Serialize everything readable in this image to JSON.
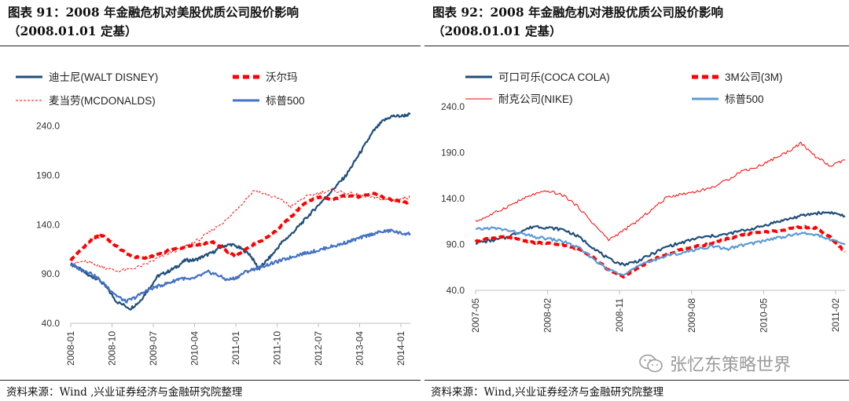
{
  "charts": [
    {
      "title": "图表 91：2008 年金融危机对美股优质公司股价影响",
      "subtitle": "（2008.01.01 定基）",
      "source": "资料来源：Wind ,兴业证券经济与金融研究院整理"
    },
    {
      "title": "图表 92：2008 年金融危机对港股优质公司股价影响",
      "subtitle": "（2008.01.01 定基）",
      "source": "资料来源：Wind,兴业证券经济与金融研究院整理"
    }
  ],
  "watermark": "张忆东策略世界",
  "colors": {
    "navy": "#1f4e79",
    "red": "#ff0000",
    "blue": "#4472c4",
    "lightblue": "#5b9bd5"
  },
  "chart_data": [
    {
      "type": "line",
      "title": "",
      "x_ticks": [
        "2008-01",
        "2008-10",
        "2009-07",
        "2010-04",
        "2011-01",
        "2011-10",
        "2012-07",
        "2013-04",
        "2014-01"
      ],
      "y_ticks": [
        "40.0",
        "90.0",
        "140.0",
        "190.0",
        "240.0"
      ],
      "ylim": [
        40,
        250
      ],
      "grid": false,
      "legend": "top",
      "series": [
        {
          "name": "迪士尼(WALT DISNEY)",
          "color": "#1f4e79",
          "style": "solid",
          "values": [
            [
              0,
              100
            ],
            [
              2,
              95
            ],
            [
              4,
              88
            ],
            [
              6,
              85
            ],
            [
              8,
              75
            ],
            [
              10,
              62
            ],
            [
              13,
              55
            ],
            [
              15,
              62
            ],
            [
              17,
              75
            ],
            [
              19,
              88
            ],
            [
              21,
              92
            ],
            [
              23,
              97
            ],
            [
              25,
              104
            ],
            [
              27,
              104
            ],
            [
              29,
              108
            ],
            [
              31,
              112
            ],
            [
              33,
              118
            ],
            [
              35,
              120
            ],
            [
              37,
              116
            ],
            [
              39,
              110
            ],
            [
              41,
              95
            ],
            [
              42,
              100
            ],
            [
              44,
              110
            ],
            [
              46,
              122
            ],
            [
              48,
              130
            ],
            [
              50,
              140
            ],
            [
              52,
              150
            ],
            [
              54,
              160
            ],
            [
              56,
              170
            ],
            [
              58,
              180
            ],
            [
              60,
              190
            ],
            [
              62,
              205
            ],
            [
              64,
              220
            ],
            [
              66,
              235
            ],
            [
              68,
              245
            ],
            [
              70,
              250
            ],
            [
              72,
              250
            ],
            [
              74,
              252
            ]
          ]
        },
        {
          "name": "沃尔玛",
          "color": "#ff0000",
          "style": "thickdash",
          "values": [
            [
              0,
              104
            ],
            [
              3,
              118
            ],
            [
              5,
              127
            ],
            [
              7,
              129
            ],
            [
              10,
              118
            ],
            [
              13,
              108
            ],
            [
              16,
              106
            ],
            [
              19,
              110
            ],
            [
              22,
              115
            ],
            [
              25,
              117
            ],
            [
              28,
              120
            ],
            [
              31,
              122
            ],
            [
              34,
              113
            ],
            [
              36,
              108
            ],
            [
              39,
              118
            ],
            [
              42,
              125
            ],
            [
              45,
              135
            ],
            [
              48,
              148
            ],
            [
              51,
              162
            ],
            [
              54,
              168
            ],
            [
              57,
              165
            ],
            [
              60,
              170
            ],
            [
              63,
              168
            ],
            [
              66,
              172
            ],
            [
              69,
              166
            ],
            [
              72,
              164
            ],
            [
              74,
              162
            ]
          ]
        },
        {
          "name": "麦当劳(MCDONALDS)",
          "color": "#ff0000",
          "style": "thindash",
          "values": [
            [
              0,
              100
            ],
            [
              3,
              103
            ],
            [
              5,
              100
            ],
            [
              7,
              97
            ],
            [
              10,
              93
            ],
            [
              13,
              95
            ],
            [
              16,
              99
            ],
            [
              19,
              106
            ],
            [
              22,
              112
            ],
            [
              25,
              118
            ],
            [
              28,
              125
            ],
            [
              31,
              135
            ],
            [
              34,
              145
            ],
            [
              37,
              160
            ],
            [
              40,
              175
            ],
            [
              43,
              170
            ],
            [
              46,
              165
            ],
            [
              48,
              158
            ],
            [
              51,
              168
            ],
            [
              54,
              172
            ],
            [
              57,
              175
            ],
            [
              60,
              172
            ],
            [
              63,
              170
            ],
            [
              66,
              167
            ],
            [
              69,
              165
            ],
            [
              72,
              166
            ],
            [
              74,
              168
            ]
          ]
        },
        {
          "name": "标普500",
          "color": "#4472c4",
          "style": "solid",
          "values": [
            [
              0,
              100
            ],
            [
              2,
              95
            ],
            [
              4,
              92
            ],
            [
              6,
              85
            ],
            [
              8,
              77
            ],
            [
              10,
              68
            ],
            [
              12,
              62
            ],
            [
              14,
              66
            ],
            [
              16,
              72
            ],
            [
              18,
              76
            ],
            [
              20,
              79
            ],
            [
              22,
              82
            ],
            [
              24,
              86
            ],
            [
              26,
              84
            ],
            [
              28,
              88
            ],
            [
              30,
              92
            ],
            [
              32,
              89
            ],
            [
              34,
              84
            ],
            [
              36,
              86
            ],
            [
              38,
              92
            ],
            [
              40,
              95
            ],
            [
              42,
              98
            ],
            [
              44,
              101
            ],
            [
              46,
              104
            ],
            [
              48,
              107
            ],
            [
              50,
              110
            ],
            [
              52,
              112
            ],
            [
              54,
              114
            ],
            [
              56,
              117
            ],
            [
              58,
              119
            ],
            [
              60,
              122
            ],
            [
              62,
              125
            ],
            [
              64,
              128
            ],
            [
              66,
              131
            ],
            [
              68,
              133
            ],
            [
              70,
              134
            ],
            [
              72,
              131
            ],
            [
              74,
              131
            ]
          ]
        }
      ]
    },
    {
      "type": "line",
      "title": "",
      "x_ticks": [
        "2007-05",
        "2008-02",
        "2008-11",
        "2009-08",
        "2010-05",
        "2011-02"
      ],
      "y_ticks": [
        "40.0",
        "90.0",
        "140.0",
        "190.0",
        "240.0"
      ],
      "ylim": [
        40,
        240
      ],
      "grid": false,
      "legend": "top",
      "series": [
        {
          "name": "可口可乐(COCA COLA)",
          "color": "#1f4e79",
          "style": "solid",
          "values": [
            [
              0,
              92
            ],
            [
              3,
              94
            ],
            [
              6,
              97
            ],
            [
              9,
              104
            ],
            [
              12,
              110
            ],
            [
              15,
              108
            ],
            [
              18,
              106
            ],
            [
              21,
              98
            ],
            [
              24,
              86
            ],
            [
              27,
              74
            ],
            [
              30,
              68
            ],
            [
              33,
              72
            ],
            [
              36,
              80
            ],
            [
              39,
              88
            ],
            [
              42,
              92
            ],
            [
              45,
              97
            ],
            [
              48,
              99
            ],
            [
              51,
              101
            ],
            [
              54,
              105
            ],
            [
              57,
              108
            ],
            [
              60,
              113
            ],
            [
              63,
              117
            ],
            [
              66,
              121
            ],
            [
              69,
              124
            ],
            [
              72,
              125
            ],
            [
              75,
              121
            ]
          ]
        },
        {
          "name": "3M公司(3M)",
          "color": "#ff0000",
          "style": "thickdash",
          "values": [
            [
              0,
              93
            ],
            [
              3,
              97
            ],
            [
              6,
              98
            ],
            [
              9,
              95
            ],
            [
              12,
              92
            ],
            [
              15,
              91
            ],
            [
              18,
              89
            ],
            [
              21,
              85
            ],
            [
              24,
              76
            ],
            [
              27,
              62
            ],
            [
              30,
              55
            ],
            [
              33,
              64
            ],
            [
              36,
              74
            ],
            [
              39,
              79
            ],
            [
              42,
              85
            ],
            [
              45,
              88
            ],
            [
              48,
              91
            ],
            [
              51,
              96
            ],
            [
              54,
              100
            ],
            [
              57,
              103
            ],
            [
              60,
              104
            ],
            [
              63,
              106
            ],
            [
              66,
              109
            ],
            [
              69,
              108
            ],
            [
              72,
              98
            ],
            [
              75,
              82
            ]
          ]
        },
        {
          "name": "耐克公司(NIKE)",
          "color": "#ff0000",
          "style": "thin",
          "values": [
            [
              0,
              115
            ],
            [
              3,
              122
            ],
            [
              6,
              130
            ],
            [
              9,
              138
            ],
            [
              12,
              145
            ],
            [
              15,
              148
            ],
            [
              18,
              143
            ],
            [
              21,
              130
            ],
            [
              24,
              112
            ],
            [
              27,
              95
            ],
            [
              30,
              105
            ],
            [
              33,
              116
            ],
            [
              36,
              129
            ],
            [
              39,
              142
            ],
            [
              42,
              145
            ],
            [
              45,
              148
            ],
            [
              48,
              152
            ],
            [
              51,
              160
            ],
            [
              54,
              170
            ],
            [
              57,
              174
            ],
            [
              60,
              182
            ],
            [
              63,
              190
            ],
            [
              66,
              200
            ],
            [
              69,
              186
            ],
            [
              72,
              175
            ],
            [
              75,
              182
            ]
          ]
        },
        {
          "name": "标普500",
          "color": "#5b9bd5",
          "style": "solid",
          "values": [
            [
              0,
              106
            ],
            [
              3,
              108
            ],
            [
              6,
              106
            ],
            [
              9,
              102
            ],
            [
              12,
              98
            ],
            [
              15,
              96
            ],
            [
              18,
              93
            ],
            [
              21,
              86
            ],
            [
              24,
              74
            ],
            [
              27,
              62
            ],
            [
              30,
              58
            ],
            [
              33,
              66
            ],
            [
              36,
              73
            ],
            [
              39,
              78
            ],
            [
              42,
              81
            ],
            [
              45,
              85
            ],
            [
              48,
              88
            ],
            [
              51,
              85
            ],
            [
              54,
              89
            ],
            [
              57,
              92
            ],
            [
              60,
              96
            ],
            [
              63,
              99
            ],
            [
              66,
              102
            ],
            [
              69,
              101
            ],
            [
              72,
              95
            ],
            [
              75,
              90
            ]
          ]
        }
      ]
    }
  ]
}
